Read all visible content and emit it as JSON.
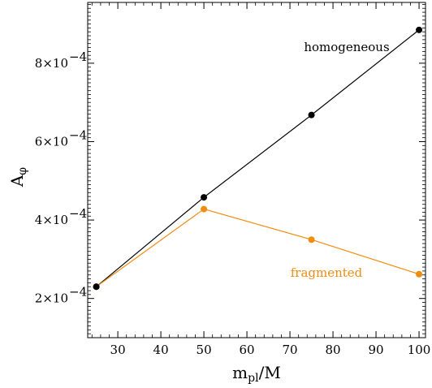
{
  "chart_data": {
    "type": "line",
    "xlabel": "m_pl/M",
    "ylabel": "A_φ",
    "xlim": [
      23,
      101.5
    ],
    "ylim": [
      0.0001,
      0.000955
    ],
    "x_ticks": [
      30,
      40,
      50,
      60,
      70,
      80,
      90,
      100
    ],
    "y_ticks": [
      0.0002,
      0.0004,
      0.0006,
      0.0008
    ],
    "x_tick_labels": [
      "30",
      "40",
      "50",
      "60",
      "70",
      "80",
      "90",
      "100"
    ],
    "y_tick_labels": [
      "2×10",
      "4×10",
      "6×10",
      "8×10"
    ],
    "y_tick_exponent": "−4",
    "grid": false,
    "series": [
      {
        "name": "homogeneous",
        "color": "#000000",
        "x": [
          25,
          50,
          75,
          100
        ],
        "y": [
          0.00023,
          0.000458,
          0.000668,
          0.000885
        ]
      },
      {
        "name": "fragmented",
        "color": "#f28c0f",
        "x": [
          25,
          50,
          75,
          100
        ],
        "y": [
          0.00023,
          0.000428,
          0.00035,
          0.000262
        ]
      }
    ]
  }
}
